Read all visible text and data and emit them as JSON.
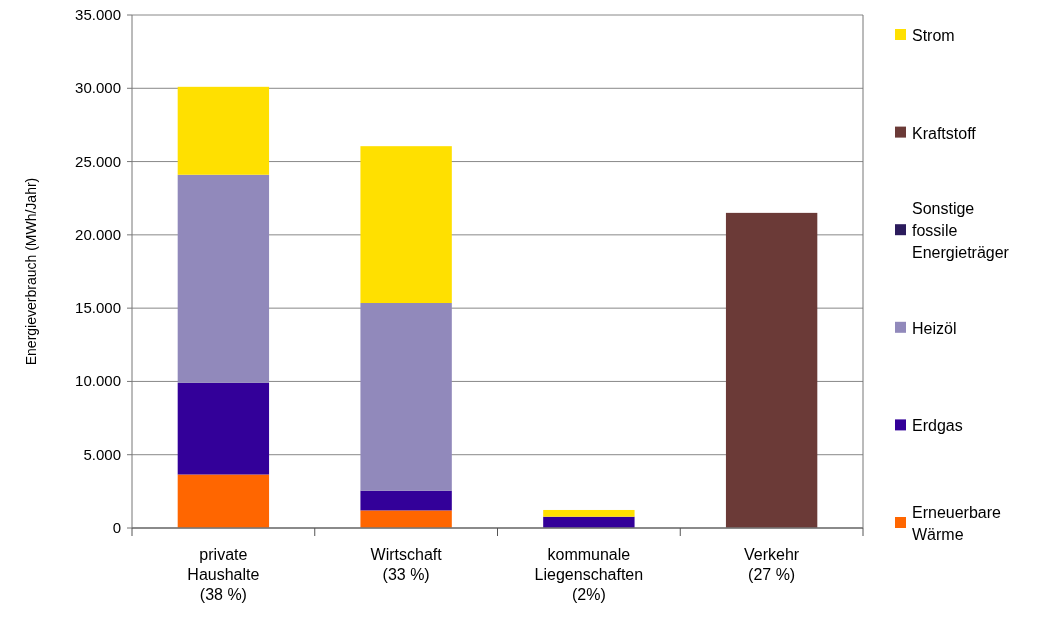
{
  "chart_data": {
    "type": "bar",
    "stacked": true,
    "ylabel": "Energieverbrauch (MWh/Jahr)",
    "categories": [
      "private\nHaushalte\n(38 %)",
      "Wirtschaft\n(33 %)",
      "kommunale\nLiegenschaften\n(2%)",
      "Verkehr\n(27 %)"
    ],
    "series": [
      {
        "name": "Erneuerbare\nWärme",
        "color": "#ff6600",
        "values": [
          3650,
          1200,
          0,
          0
        ]
      },
      {
        "name": "Erdgas",
        "color": "#330099",
        "values": [
          6250,
          1350,
          770,
          0
        ]
      },
      {
        "name": "Heizöl",
        "color": "#9189bb",
        "values": [
          14200,
          12800,
          0,
          0
        ]
      },
      {
        "name": "Sonstige\nfossile\nEnergieträger",
        "color": "#2b1b5c",
        "values": [
          0,
          0,
          0,
          0
        ]
      },
      {
        "name": "Kraftstoff",
        "color": "#6b3a37",
        "values": [
          0,
          0,
          0,
          21500
        ]
      },
      {
        "name": "Strom",
        "color": "#ffe000",
        "values": [
          6000,
          10700,
          460,
          0
        ]
      }
    ],
    "ylim": [
      0,
      35000
    ],
    "yticks": [
      {
        "value": 0,
        "label": "0"
      },
      {
        "value": 5000,
        "label": "5.000"
      },
      {
        "value": 10000,
        "label": "10.000"
      },
      {
        "value": 15000,
        "label": "15.000"
      },
      {
        "value": 20000,
        "label": "20.000"
      },
      {
        "value": 25000,
        "label": "25.000"
      },
      {
        "value": 30000,
        "label": "30.000"
      },
      {
        "value": 35000,
        "label": "35.000"
      }
    ],
    "grid": "y",
    "legend": "right"
  }
}
